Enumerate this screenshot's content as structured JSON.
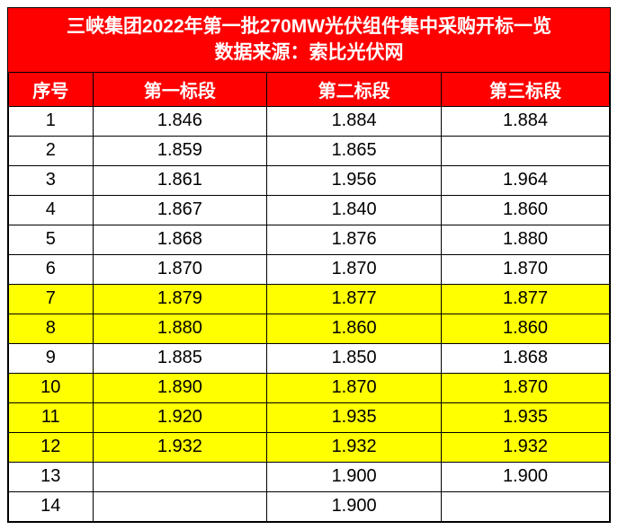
{
  "title_line1": "三峡集团2022年第一批270MW光伏组件集中采购开标一览",
  "title_line2": "数据来源：索比光伏网",
  "colors": {
    "header_bg": "#ff0000",
    "header_fg": "#ffffff",
    "row_bg": "#ffffff",
    "highlight_bg": "#ffff00",
    "border": "#000000",
    "text": "#000000"
  },
  "columns": [
    "序号",
    "第一标段",
    "第二标段",
    "第三标段"
  ],
  "rows": [
    {
      "n": "1",
      "c1": "1.846",
      "c2": "1.884",
      "c3": "1.884",
      "hl": false
    },
    {
      "n": "2",
      "c1": "1.859",
      "c2": "1.865",
      "c3": "",
      "hl": false
    },
    {
      "n": "3",
      "c1": "1.861",
      "c2": "1.956",
      "c3": "1.964",
      "hl": false
    },
    {
      "n": "4",
      "c1": "1.867",
      "c2": "1.840",
      "c3": "1.860",
      "hl": false
    },
    {
      "n": "5",
      "c1": "1.868",
      "c2": "1.876",
      "c3": "1.880",
      "hl": false
    },
    {
      "n": "6",
      "c1": "1.870",
      "c2": "1.870",
      "c3": "1.870",
      "hl": false
    },
    {
      "n": "7",
      "c1": "1.879",
      "c2": "1.877",
      "c3": "1.877",
      "hl": true
    },
    {
      "n": "8",
      "c1": "1.880",
      "c2": "1.860",
      "c3": "1.860",
      "hl": true
    },
    {
      "n": "9",
      "c1": "1.885",
      "c2": "1.850",
      "c3": "1.868",
      "hl": false
    },
    {
      "n": "10",
      "c1": "1.890",
      "c2": "1.870",
      "c3": "1.870",
      "hl": true
    },
    {
      "n": "11",
      "c1": "1.920",
      "c2": "1.935",
      "c3": "1.935",
      "hl": true
    },
    {
      "n": "12",
      "c1": "1.932",
      "c2": "1.932",
      "c3": "1.932",
      "hl": true
    },
    {
      "n": "13",
      "c1": "",
      "c2": "1.900",
      "c3": "1.900",
      "hl": false
    },
    {
      "n": "14",
      "c1": "",
      "c2": "1.900",
      "c3": "",
      "hl": false
    }
  ]
}
